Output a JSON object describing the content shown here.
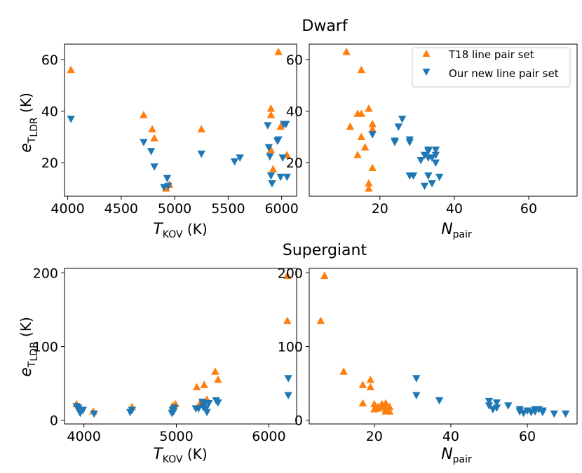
{
  "colors": {
    "t18": "#ff7f0e",
    "ournew": "#1f77b4"
  },
  "legend": {
    "t18_label": "T18 line pair set",
    "ournew_label": "Our new line pair set"
  },
  "group_titles": {
    "dwarf": "Dwarf",
    "supergiant": "Supergiant"
  },
  "axis_text": {
    "ylabel_main": "e",
    "ylabel_sub_T": "T",
    "ylabel_sub_LDR": "LDR",
    "ylabel_unit": " (K)",
    "xlabel_T": "T",
    "xlabel_T_sub": "KOV",
    "xlabel_T_unit": " (K)",
    "xlabel_N": "N",
    "xlabel_N_sub": "pair"
  },
  "chart_data": [
    {
      "id": "dwarf-teff",
      "type": "scatter",
      "title": "Dwarf",
      "xlabel": "T_KOV (K)",
      "ylabel": "e_T_LDR (K)",
      "xlim": [
        3970,
        6140
      ],
      "ylim": [
        7,
        66
      ],
      "xticks": [
        4000,
        4500,
        5000,
        5500,
        6000
      ],
      "yticks": [
        20,
        40,
        60
      ],
      "series": [
        {
          "name": "T18 line pair set",
          "marker": "triangle-up",
          "x": [
            4030,
            4710,
            4790,
            4810,
            4920,
            4950,
            5250,
            5900,
            5900,
            5900,
            5920,
            5970,
            5990,
            6050
          ],
          "y": [
            56,
            38.5,
            33,
            29.5,
            10,
            11.5,
            33,
            41,
            38.5,
            25,
            17.5,
            63,
            34,
            23
          ]
        },
        {
          "name": "Our new line pair set",
          "marker": "triangle-down",
          "x": [
            4030,
            4710,
            4780,
            4810,
            4900,
            4930,
            4940,
            5250,
            5560,
            5610,
            5870,
            5880,
            5890,
            5900,
            5910,
            5960,
            5970,
            5990,
            6010,
            6020,
            6040,
            6050
          ],
          "y": [
            37,
            28,
            24.5,
            18.5,
            10.5,
            14,
            11,
            23.5,
            20.5,
            22,
            34.5,
            26,
            22.5,
            15,
            12,
            28.5,
            29,
            14.5,
            22,
            35,
            35,
            14.5
          ]
        }
      ]
    },
    {
      "id": "dwarf-npair",
      "type": "scatter",
      "title": "Dwarf",
      "xlabel": "N_pair",
      "ylabel": "",
      "xlim": [
        1,
        73
      ],
      "ylim": [
        7,
        66
      ],
      "xticks": [
        20,
        40,
        60
      ],
      "yticks": [
        20,
        40,
        60
      ],
      "series": [
        {
          "name": "T18 line pair set",
          "marker": "triangle-up",
          "x": [
            11,
            12,
            14,
            14,
            15,
            15,
            15,
            16,
            17,
            17,
            17,
            18,
            18,
            18
          ],
          "y": [
            63,
            34,
            39,
            23,
            39,
            56,
            30,
            26,
            41,
            12,
            10,
            33,
            18,
            35
          ]
        },
        {
          "name": "Our new line pair set",
          "marker": "triangle-down",
          "x": [
            18,
            24,
            25,
            26,
            28,
            28,
            28,
            29,
            31,
            32,
            32,
            33,
            33,
            33,
            34,
            34,
            35,
            35,
            35,
            36,
            24,
            33
          ],
          "y": [
            31,
            28.5,
            34,
            37,
            28,
            15,
            29,
            15,
            21,
            23,
            11,
            24.5,
            25,
            15,
            22,
            12,
            25,
            20,
            23,
            14.5,
            28,
            22
          ]
        }
      ]
    },
    {
      "id": "supergiant-teff",
      "type": "scatter",
      "title": "Supergiant",
      "xlabel": "T_KOV (K)",
      "ylabel": "e_T_LDR (K)",
      "xlim": [
        3790,
        6300
      ],
      "ylim": [
        -5,
        206
      ],
      "xticks": [
        4000,
        5000,
        6000
      ],
      "yticks": [
        0,
        100,
        200
      ],
      "series": [
        {
          "name": "T18 line pair set",
          "marker": "triangle-up",
          "x": [
            3920,
            3960,
            4100,
            4520,
            4960,
            4990,
            5220,
            5250,
            5300,
            5330,
            5420,
            5450,
            6200,
            6200
          ],
          "y": [
            22,
            16,
            12,
            18,
            20,
            22,
            45,
            22,
            48,
            28,
            66,
            55,
            196,
            135
          ]
        },
        {
          "name": "Our new line pair set",
          "marker": "triangle-down",
          "x": [
            3920,
            3940,
            3960,
            3990,
            4110,
            4500,
            4520,
            4950,
            4960,
            4970,
            4980,
            5210,
            5240,
            5280,
            5290,
            5300,
            5320,
            5330,
            5350,
            5430,
            5450,
            6210,
            6210
          ],
          "y": [
            19,
            17,
            10,
            14,
            9,
            11,
            14,
            10,
            14,
            12,
            17,
            16,
            16,
            25,
            18,
            22,
            16,
            11,
            23,
            27,
            24,
            57,
            34
          ]
        }
      ]
    },
    {
      "id": "supergiant-npair",
      "type": "scatter",
      "title": "Supergiant",
      "xlabel": "N_pair",
      "ylabel": "",
      "xlim": [
        3,
        73
      ],
      "ylim": [
        -5,
        206
      ],
      "xticks": [
        20,
        40,
        60
      ],
      "yticks": [
        0,
        100,
        200
      ],
      "series": [
        {
          "name": "T18 line pair set",
          "marker": "triangle-up",
          "x": [
            6,
            7,
            12,
            17,
            17,
            19,
            19,
            20,
            20,
            21,
            21,
            22,
            22,
            23,
            23,
            23,
            24,
            24
          ],
          "y": [
            135,
            196,
            66,
            48,
            23,
            45,
            55,
            15,
            22,
            16,
            18,
            22,
            18,
            23,
            15,
            12,
            18,
            12
          ]
        },
        {
          "name": "Our new line pair set",
          "marker": "triangle-down",
          "x": [
            31,
            31,
            37,
            50,
            50,
            51,
            52,
            52,
            55,
            58,
            58,
            59,
            60,
            61,
            62,
            62,
            63,
            64,
            64,
            67,
            70
          ],
          "y": [
            57,
            34,
            27,
            26,
            20,
            15,
            17,
            24,
            20,
            12,
            15,
            10,
            13,
            11,
            15,
            12,
            15,
            13,
            11,
            9,
            9
          ]
        }
      ]
    }
  ]
}
